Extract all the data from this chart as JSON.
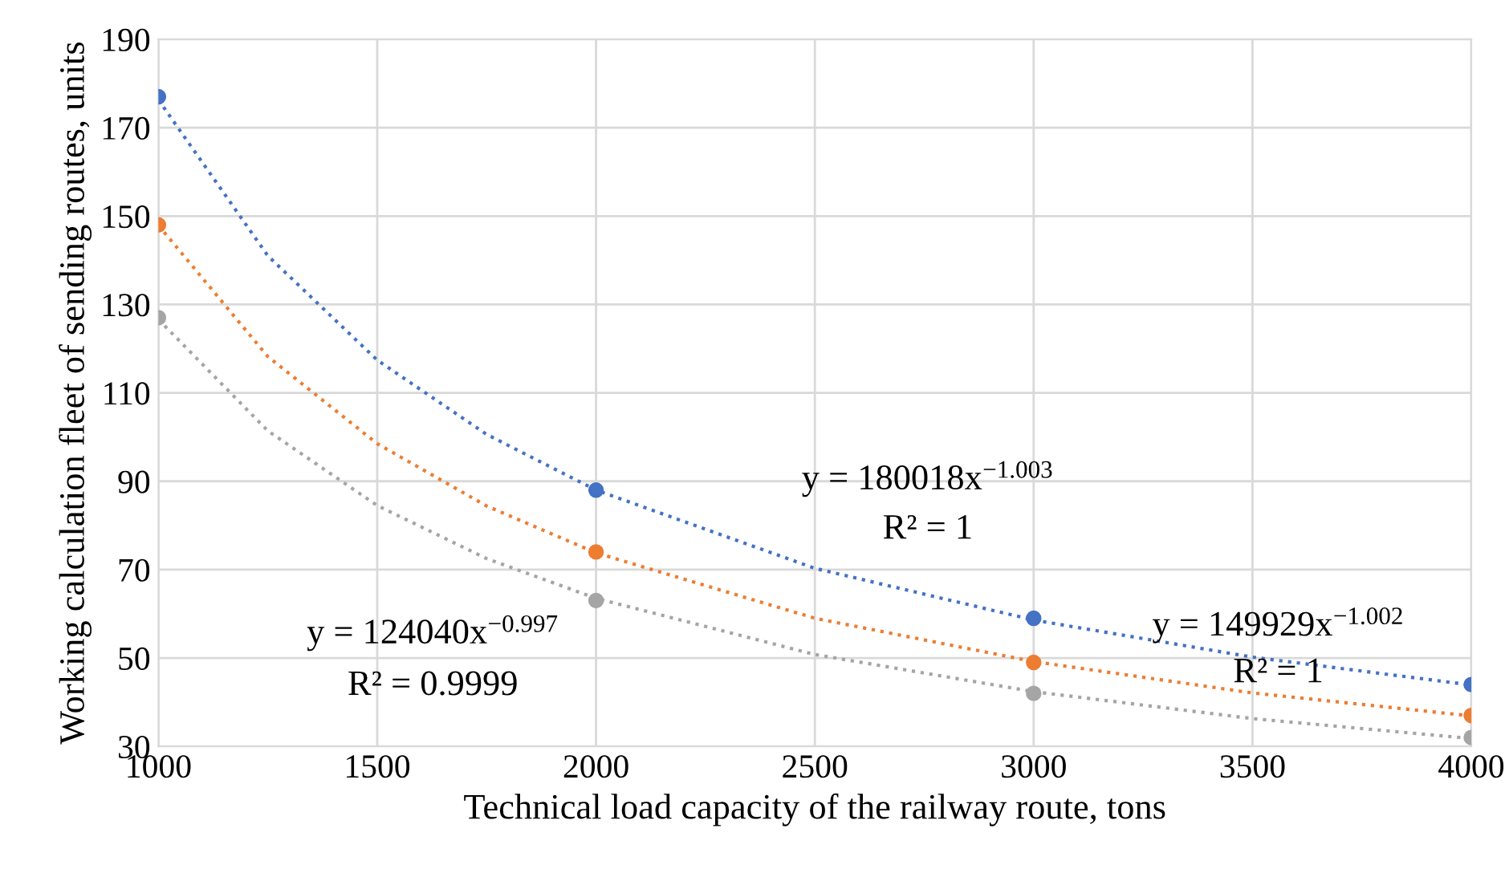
{
  "chart_data": {
    "type": "scatter",
    "xlabel": "Technical load capacity of the railway route, tons",
    "ylabel": "Working calculation fleet of sending routes, units",
    "xlim": [
      1000,
      4000
    ],
    "xticks": [
      1000,
      1500,
      2000,
      2500,
      3000,
      3500,
      4000
    ],
    "ylim": [
      30,
      190
    ],
    "yticks": [
      30,
      50,
      70,
      90,
      110,
      130,
      150,
      170,
      190
    ],
    "grid": true,
    "legend": false,
    "series": [
      {
        "type": "line",
        "line_style": "dotted",
        "marker": "none",
        "color": "#4472c4",
        "x": [
          1000,
          1250,
          1500,
          1750,
          2000,
          2500,
          3000,
          3500,
          4000
        ],
        "values": [
          176.3,
          141.0,
          117.4,
          100.6,
          88.0,
          70.3,
          58.6,
          50.2,
          43.9
        ]
      },
      {
        "type": "line",
        "line_style": "dotted",
        "marker": "none",
        "color": "#ed7d31",
        "x": [
          1000,
          1250,
          1500,
          1750,
          2000,
          2500,
          3000,
          3500,
          4000
        ],
        "values": [
          147.9,
          118.2,
          98.5,
          84.4,
          73.8,
          59.0,
          49.2,
          42.1,
          36.9
        ]
      },
      {
        "type": "line",
        "line_style": "dotted",
        "marker": "none",
        "color": "#a5a5a5",
        "x": [
          1000,
          1250,
          1500,
          1750,
          2000,
          2500,
          3000,
          3500,
          4000
        ],
        "values": [
          126.6,
          101.4,
          84.5,
          72.5,
          63.5,
          50.8,
          42.4,
          36.3,
          31.8
        ]
      },
      {
        "marker": "circle",
        "color": "#4472c4",
        "x": [
          1000,
          2000,
          3000,
          4000
        ],
        "values": [
          177,
          88,
          59,
          44
        ]
      },
      {
        "marker": "circle",
        "color": "#ed7d31",
        "x": [
          1000,
          2000,
          3000,
          4000
        ],
        "values": [
          148,
          74,
          49,
          37
        ]
      },
      {
        "marker": "circle",
        "color": "#a5a5a5",
        "x": [
          1000,
          2000,
          3000,
          4000
        ],
        "values": [
          127,
          63,
          42,
          32
        ]
      }
    ],
    "annotations": [
      "y = 180018x$^{−1.003}$",
      "R² = 1",
      "y = 149929x$^{−1.002}$",
      "R² = 1",
      "y = 124040x$^{−0.997}$",
      "R² = 0.9999"
    ]
  }
}
